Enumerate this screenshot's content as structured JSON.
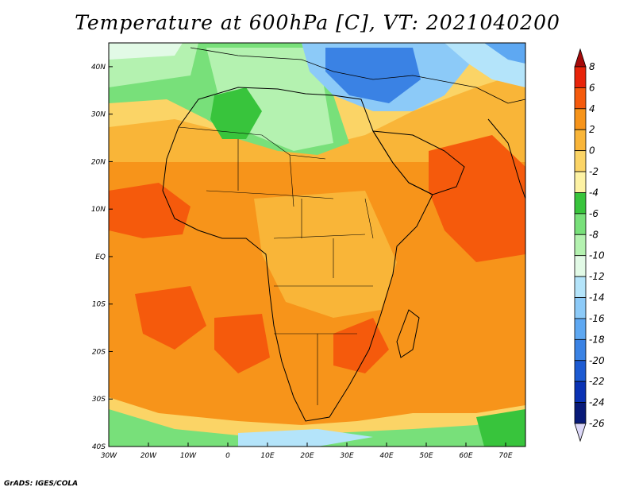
{
  "title": "Temperature at 600hPa [C], VT: 2021040200",
  "footer": "GrADS: IGES/COLA",
  "map": {
    "lon_range": [
      -30,
      75
    ],
    "lat_range": [
      -40,
      45
    ],
    "lat_labels": [
      "40N",
      "30N",
      "20N",
      "10N",
      "EQ",
      "10S",
      "20S",
      "30S",
      "40S"
    ],
    "lon_labels": [
      "30W",
      "20W",
      "10W",
      "0",
      "10E",
      "20E",
      "30E",
      "40E",
      "50E",
      "60E",
      "70E"
    ]
  },
  "colorbar": {
    "labels": [
      "8",
      "6",
      "4",
      "2",
      "0",
      "-2",
      "-4",
      "-6",
      "-8",
      "-10",
      "-12",
      "-14",
      "-16",
      "-18",
      "-20",
      "-22",
      "-24",
      "-26"
    ],
    "colors": [
      "#a50a0a",
      "#e8240a",
      "#f55a0c",
      "#f7941a",
      "#f9b538",
      "#fbd466",
      "#fdf2a4",
      "#38c43c",
      "#78e07a",
      "#b4f2b0",
      "#e2fae6",
      "#b4e4fa",
      "#8ccaf8",
      "#5ea8f2",
      "#3a82e4",
      "#1c5ad2",
      "#0a32b4",
      "#081a78",
      "#dcd8f8"
    ]
  }
}
